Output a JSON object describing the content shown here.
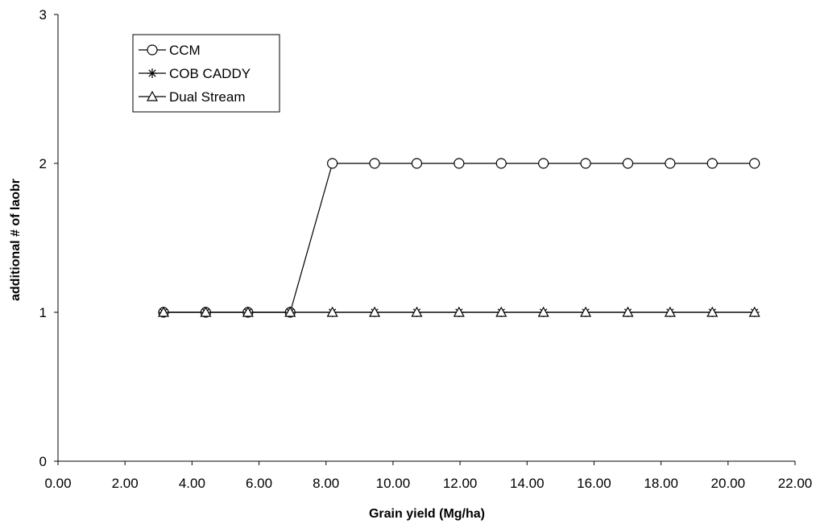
{
  "chart_data": {
    "type": "line",
    "title": "",
    "xlabel": "Grain yield (Mg/ha)",
    "ylabel": "additional # of laobr",
    "xlim": [
      0,
      22
    ],
    "ylim": [
      0,
      3
    ],
    "x_ticks": [
      "0.00",
      "2.00",
      "4.00",
      "6.00",
      "8.00",
      "10.00",
      "12.00",
      "14.00",
      "16.00",
      "18.00",
      "20.00",
      "22.00"
    ],
    "y_ticks": [
      "0",
      "1",
      "2",
      "3"
    ],
    "grid": false,
    "legend_position": "top-left",
    "x": [
      3.15,
      4.41,
      5.67,
      6.93,
      8.19,
      9.45,
      10.71,
      11.97,
      13.23,
      14.49,
      15.75,
      17.01,
      18.27,
      19.53,
      20.79
    ],
    "series": [
      {
        "name": "CCM",
        "marker": "circle",
        "values": [
          1,
          1,
          1,
          1,
          2,
          2,
          2,
          2,
          2,
          2,
          2,
          2,
          2,
          2,
          2
        ]
      },
      {
        "name": "COB CADDY",
        "marker": "asterisk",
        "values": [
          1,
          1,
          1,
          1,
          1,
          1,
          1,
          1,
          1,
          1,
          1,
          1,
          1,
          1,
          1
        ]
      },
      {
        "name": "Dual Stream",
        "marker": "triangle",
        "values": [
          1,
          1,
          1,
          1,
          1,
          1,
          1,
          1,
          1,
          1,
          1,
          1,
          1,
          1,
          1
        ]
      }
    ]
  }
}
